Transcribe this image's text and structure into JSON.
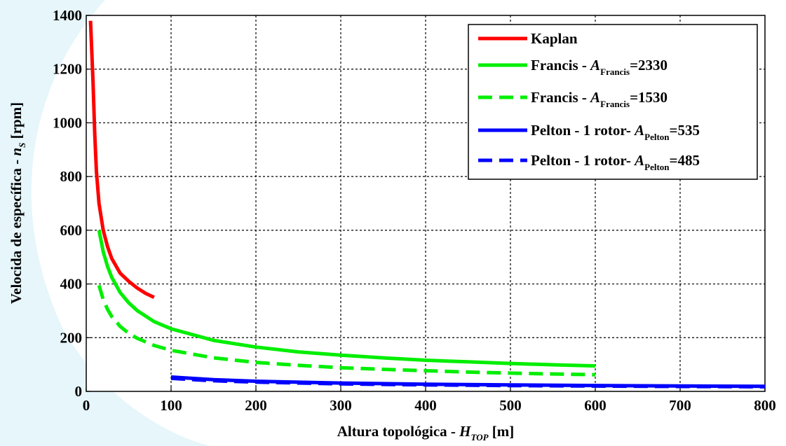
{
  "chart_data": {
    "type": "line",
    "xlabel_prefix": "Altura topológica - ",
    "xlabel_var": "H",
    "xlabel_sub": "TOP",
    "xlabel_suffix": " [m]",
    "ylabel_prefix": "Velocida de específica - ",
    "ylabel_var": "n",
    "ylabel_sub": "S",
    "ylabel_suffix": " [rpm]",
    "xlim": [
      0,
      800
    ],
    "ylim": [
      0,
      1400
    ],
    "xticks": [
      0,
      100,
      200,
      300,
      400,
      500,
      600,
      700,
      800
    ],
    "yticks": [
      0,
      200,
      400,
      600,
      800,
      1000,
      1200,
      1400
    ],
    "grid": true,
    "legend_position": "top-right",
    "series": [
      {
        "name": "Kaplan",
        "legend": {
          "prefix": "Kaplan",
          "var": "",
          "sub": "",
          "suffix": ""
        },
        "color": "#ff0000",
        "dash": "solid",
        "x": [
          5,
          8,
          10,
          12,
          15,
          20,
          25,
          30,
          40,
          50,
          60,
          70,
          80
        ],
        "y": [
          1380,
          1150,
          960,
          820,
          700,
          600,
          540,
          495,
          440,
          410,
          385,
          365,
          350
        ]
      },
      {
        "name": "Francis - A Francis =2330",
        "legend": {
          "prefix": "Francis - ",
          "var": "A",
          "sub": "Francis",
          "suffix": "=2330"
        },
        "color": "#00ee00",
        "dash": "solid",
        "x": [
          15,
          20,
          25,
          30,
          40,
          50,
          60,
          80,
          100,
          150,
          200,
          250,
          300,
          350,
          400,
          450,
          500,
          550,
          600
        ],
        "y": [
          600,
          520,
          466,
          425,
          368,
          330,
          301,
          260,
          233,
          190,
          165,
          147,
          135,
          125,
          116,
          110,
          104,
          99,
          95
        ]
      },
      {
        "name": "Francis - A Francis =1530",
        "legend": {
          "prefix": "Francis - ",
          "var": "A",
          "sub": "Francis",
          "suffix": "=1530"
        },
        "color": "#00ee00",
        "dash": "dashed",
        "x": [
          15,
          20,
          25,
          30,
          40,
          50,
          60,
          80,
          100,
          150,
          200,
          250,
          300,
          350,
          400,
          450,
          500,
          550,
          600
        ],
        "y": [
          395,
          342,
          306,
          279,
          242,
          216,
          198,
          171,
          153,
          125,
          108,
          97,
          88,
          82,
          77,
          72,
          68,
          65,
          62
        ]
      },
      {
        "name": "Pelton - 1 rotor- A Pelton =535",
        "legend": {
          "prefix": "Pelton - 1 rotor- ",
          "var": "A",
          "sub": "Pelton",
          "suffix": "=535"
        },
        "color": "#0000ff",
        "dash": "solid",
        "x": [
          100,
          150,
          200,
          300,
          400,
          500,
          600,
          700,
          800
        ],
        "y": [
          53.5,
          43.7,
          37.8,
          30.9,
          26.8,
          23.9,
          21.8,
          20.2,
          18.9
        ]
      },
      {
        "name": "Pelton - 1 rotor- A Pelton =485",
        "legend": {
          "prefix": "Pelton - 1 rotor- ",
          "var": "A",
          "sub": "Pelton",
          "suffix": "=485"
        },
        "color": "#0000ff",
        "dash": "dashed",
        "x": [
          100,
          150,
          200,
          300,
          400,
          500,
          600,
          700,
          800
        ],
        "y": [
          48.5,
          39.6,
          34.3,
          28.0,
          24.3,
          21.7,
          19.8,
          18.3,
          17.1
        ]
      }
    ]
  }
}
